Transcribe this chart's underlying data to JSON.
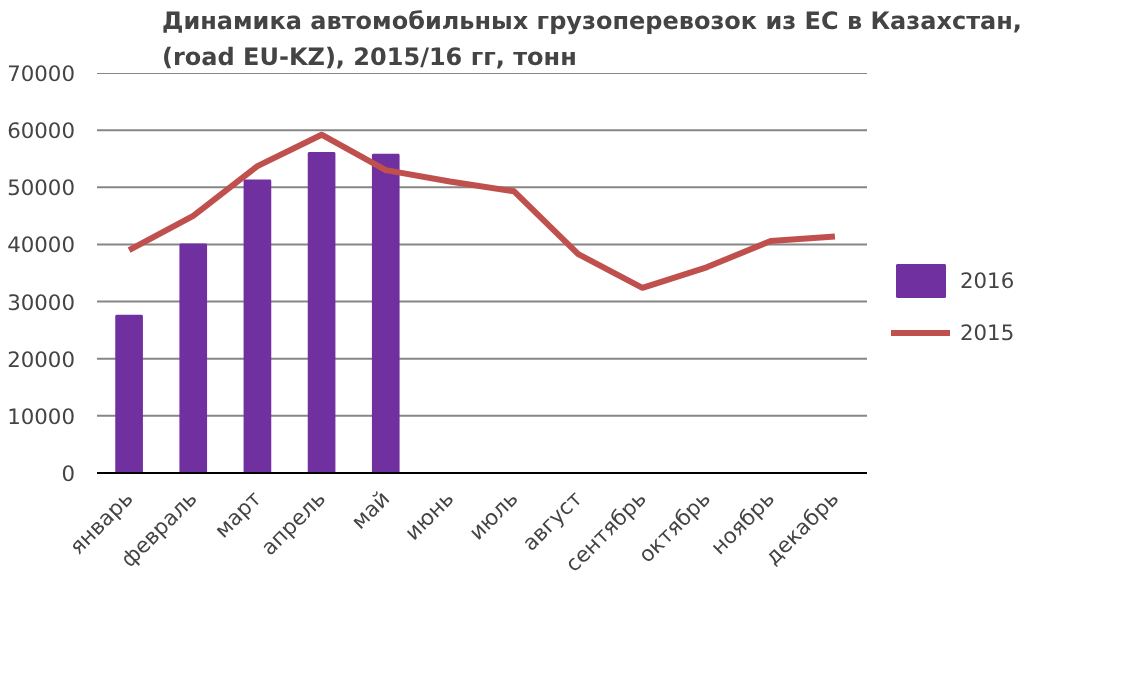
{
  "chart_data": {
    "type": "bar",
    "title": "Динамика автомобильных грузоперевозок из ЕС в Казахстан,\n(road EU-KZ), 2015/16 гг, тонн",
    "categories": [
      "январь",
      "февраль",
      "март",
      "апрель",
      "май",
      "июнь",
      "июль",
      "август",
      "сентябрь",
      "октябрь",
      "ноябрь",
      "декабрь"
    ],
    "series": [
      {
        "name": "2016",
        "color": "#7030a0",
        "values": [
          27500,
          40000,
          51200,
          56000,
          55700,
          null,
          null,
          null,
          null,
          null,
          null,
          null
        ]
      },
      {
        "name": "2015",
        "type": "line",
        "color": "#c0504d",
        "values": [
          39000,
          45000,
          53700,
          59200,
          53000,
          51000,
          49300,
          38300,
          32400,
          36000,
          40600,
          41400
        ]
      }
    ],
    "ylim": [
      0,
      70000
    ],
    "yticks": [
      0,
      10000,
      20000,
      30000,
      40000,
      50000,
      60000,
      70000
    ],
    "grid": "y",
    "legend": "right"
  }
}
